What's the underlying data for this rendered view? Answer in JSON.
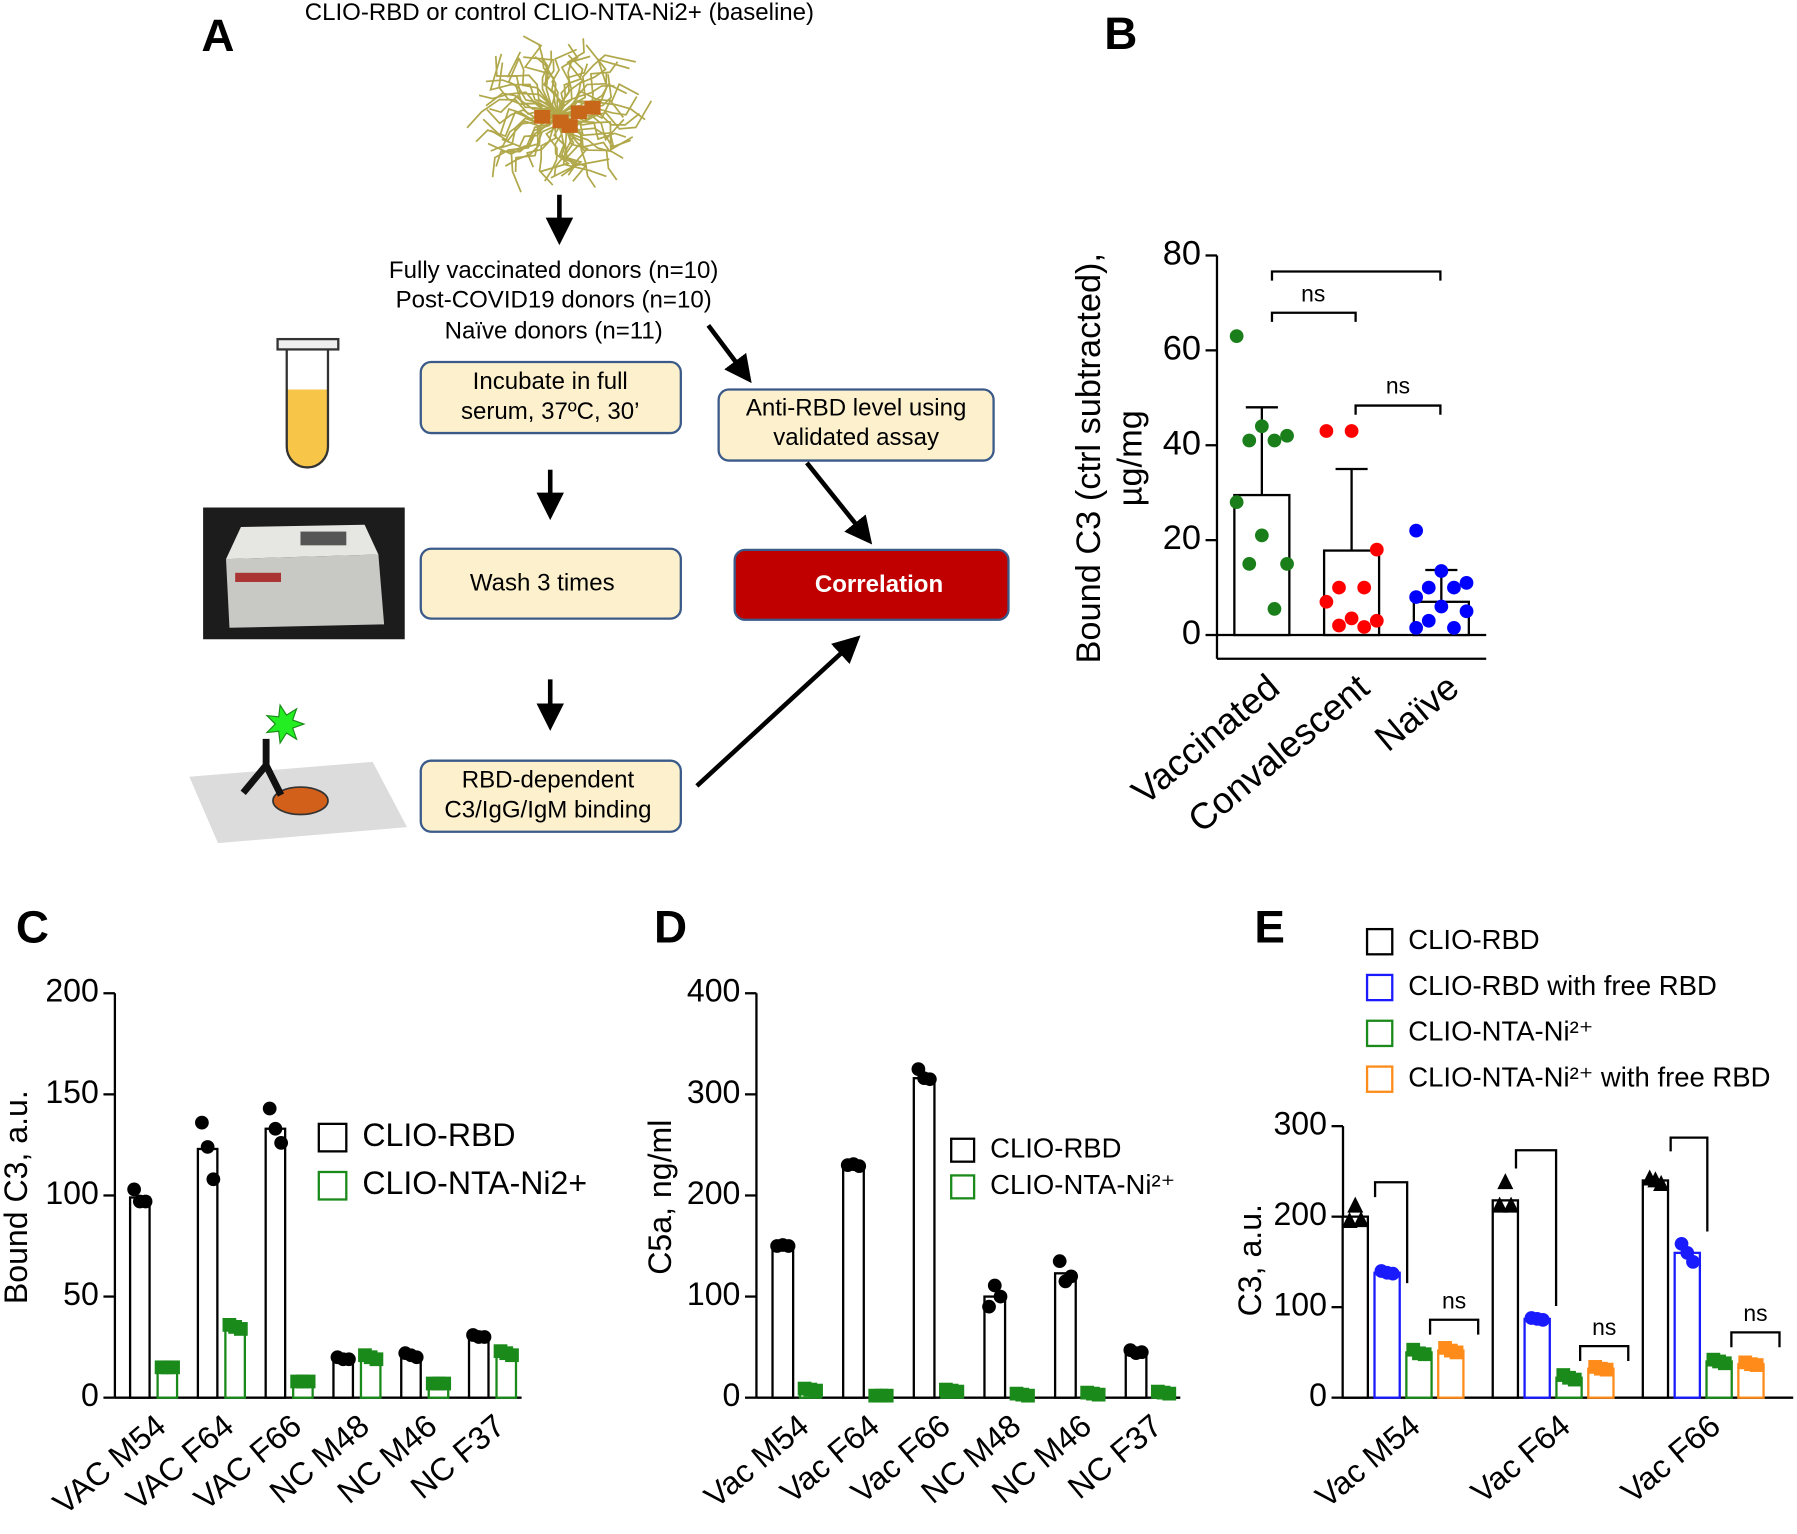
{
  "diagram": {
    "panel": "A",
    "title": "CLIO-RBD or control CLIO-NTA-Ni2+ (baseline)",
    "donors": [
      "Fully vaccinated donors (n=10)",
      "Post-COVID19 donors (n=10)",
      "Naïve donors (n=11)"
    ],
    "steps": [
      [
        "Incubate in full",
        "serum, 37ºC, 30’"
      ],
      [
        "Wash 3 times"
      ],
      [
        "RBD-dependent",
        "C3/IgG/IgM binding"
      ]
    ],
    "assay": [
      "Anti-RBD level using",
      "validated assay"
    ],
    "result": "Correlation"
  },
  "chart_data": [
    {
      "type": "bar",
      "panel": "B",
      "ylabel": [
        "Bound C3 (ctrl subtracted),",
        "µg/mg"
      ],
      "categories": [
        "Vaccinated",
        "Convalescent",
        "Naïve"
      ],
      "values": [
        29.5,
        17.8,
        7
      ],
      "error": [
        18.5,
        17.2,
        6.7
      ],
      "color": "#000000",
      "points": [
        [
          63,
          44,
          42,
          41,
          41,
          28,
          21,
          15,
          15,
          5.5
        ],
        [
          43,
          43,
          18,
          10,
          10,
          7,
          3.5,
          3,
          2,
          1.7
        ],
        [
          22,
          13.5,
          11,
          10,
          10,
          8,
          6,
          5,
          3,
          1.5,
          1.5
        ]
      ],
      "point_colors": [
        "#1a7f1a",
        "#ff0000",
        "#0000ff"
      ],
      "annotations": [
        "ns",
        "ns"
      ],
      "ylim": [
        -5,
        80
      ],
      "yticks": [
        0,
        20,
        40,
        60,
        80
      ]
    },
    {
      "type": "bar",
      "panel": "C",
      "ylabel": [
        "Bound C3, a.u."
      ],
      "categories": [
        "VAC M54",
        "VAC F64",
        "VAC F66",
        "NC M48",
        "NC M46",
        "NC F37"
      ],
      "series": [
        {
          "name": "CLIO-RBD",
          "color": "#000000",
          "marker": "circle",
          "values": [
            99,
            123,
            133,
            19,
            21,
            30
          ],
          "points": [
            [
              103,
              97,
              97
            ],
            [
              136,
              124,
              108
            ],
            [
              143,
              133,
              126
            ],
            [
              20,
              19,
              19
            ],
            [
              22,
              21,
              20
            ],
            [
              31,
              30,
              30
            ]
          ]
        },
        {
          "name": "CLIO-NTA-Ni2+",
          "color": "#1a8a1a",
          "marker": "square",
          "values": [
            15,
            35,
            8,
            20,
            7,
            22
          ],
          "points": [
            [
              15,
              15,
              15
            ],
            [
              36,
              35,
              34
            ],
            [
              8,
              8,
              8
            ],
            [
              21,
              20,
              19
            ],
            [
              7,
              7,
              7
            ],
            [
              23,
              22,
              21
            ]
          ]
        }
      ],
      "legend": "right",
      "ylim": [
        0,
        200
      ],
      "yticks": [
        0,
        50,
        100,
        150,
        200
      ]
    },
    {
      "type": "bar",
      "panel": "D",
      "ylabel": [
        "C5a, ng/ml"
      ],
      "categories": [
        "Vac M54",
        "Vac F64",
        "Vac F66",
        "NC M48",
        "NC M46",
        "NC F37"
      ],
      "series": [
        {
          "name": "CLIO-RBD",
          "color": "#000000",
          "marker": "circle",
          "values": [
            150,
            230,
            316,
            100,
            123,
            45
          ],
          "points": [
            [
              150,
              151,
              150
            ],
            [
              230,
              231,
              229
            ],
            [
              325,
              316,
              315
            ],
            [
              90,
              111,
              100
            ],
            [
              135,
              115,
              120
            ],
            [
              47,
              44,
              45
            ]
          ]
        },
        {
          "name": "CLIO-NTA-Ni²⁺",
          "color": "#1a8a1a",
          "marker": "square",
          "values": [
            8,
            2,
            7,
            3,
            4,
            5
          ],
          "points": [
            [
              9,
              8,
              7
            ],
            [
              2,
              2,
              2
            ],
            [
              8,
              7,
              6
            ],
            [
              4,
              3,
              2
            ],
            [
              5,
              4,
              3
            ],
            [
              6,
              5,
              4
            ]
          ]
        }
      ],
      "legend": "right",
      "ylim": [
        0,
        400
      ],
      "yticks": [
        0,
        100,
        200,
        300,
        400
      ]
    },
    {
      "type": "bar",
      "panel": "E",
      "ylabel": [
        "C3, a.u."
      ],
      "categories": [
        "Vac M54",
        "Vac F64",
        "Vac F66"
      ],
      "series": [
        {
          "name": "CLIO-RBD",
          "color": "#000000",
          "marker": "triangle",
          "values": [
            200,
            218,
            240
          ],
          "points": [
            [
              195,
              212,
              196
            ],
            [
              212,
              238,
              212
            ],
            [
              242,
              240,
              236
            ]
          ]
        },
        {
          "name": "CLIO-RBD with free RBD",
          "color": "#1a1aff",
          "marker": "circle",
          "values": [
            138,
            87,
            160
          ],
          "points": [
            [
              140,
              138,
              137
            ],
            [
              88,
              87,
              86
            ],
            [
              170,
              160,
              150
            ]
          ]
        },
        {
          "name": "CLIO-NTA-Ni²⁺",
          "color": "#1a8a1a",
          "marker": "square",
          "values": [
            50,
            22,
            40
          ],
          "points": [
            [
              53,
              49,
              48
            ],
            [
              25,
              22,
              20
            ],
            [
              42,
              40,
              38
            ]
          ]
        },
        {
          "name": "CLIO-NTA-Ni²⁺ with free RBD",
          "color": "#ff8c1a",
          "marker": "square",
          "values": [
            52,
            32,
            37
          ],
          "points": [
            [
              55,
              52,
              50
            ],
            [
              34,
              32,
              31
            ],
            [
              39,
              37,
              36
            ]
          ]
        }
      ],
      "annotations": [
        "ns",
        "ns",
        "ns"
      ],
      "legend": "top",
      "ylim": [
        0,
        300
      ],
      "yticks": [
        0,
        100,
        200,
        300
      ]
    }
  ]
}
